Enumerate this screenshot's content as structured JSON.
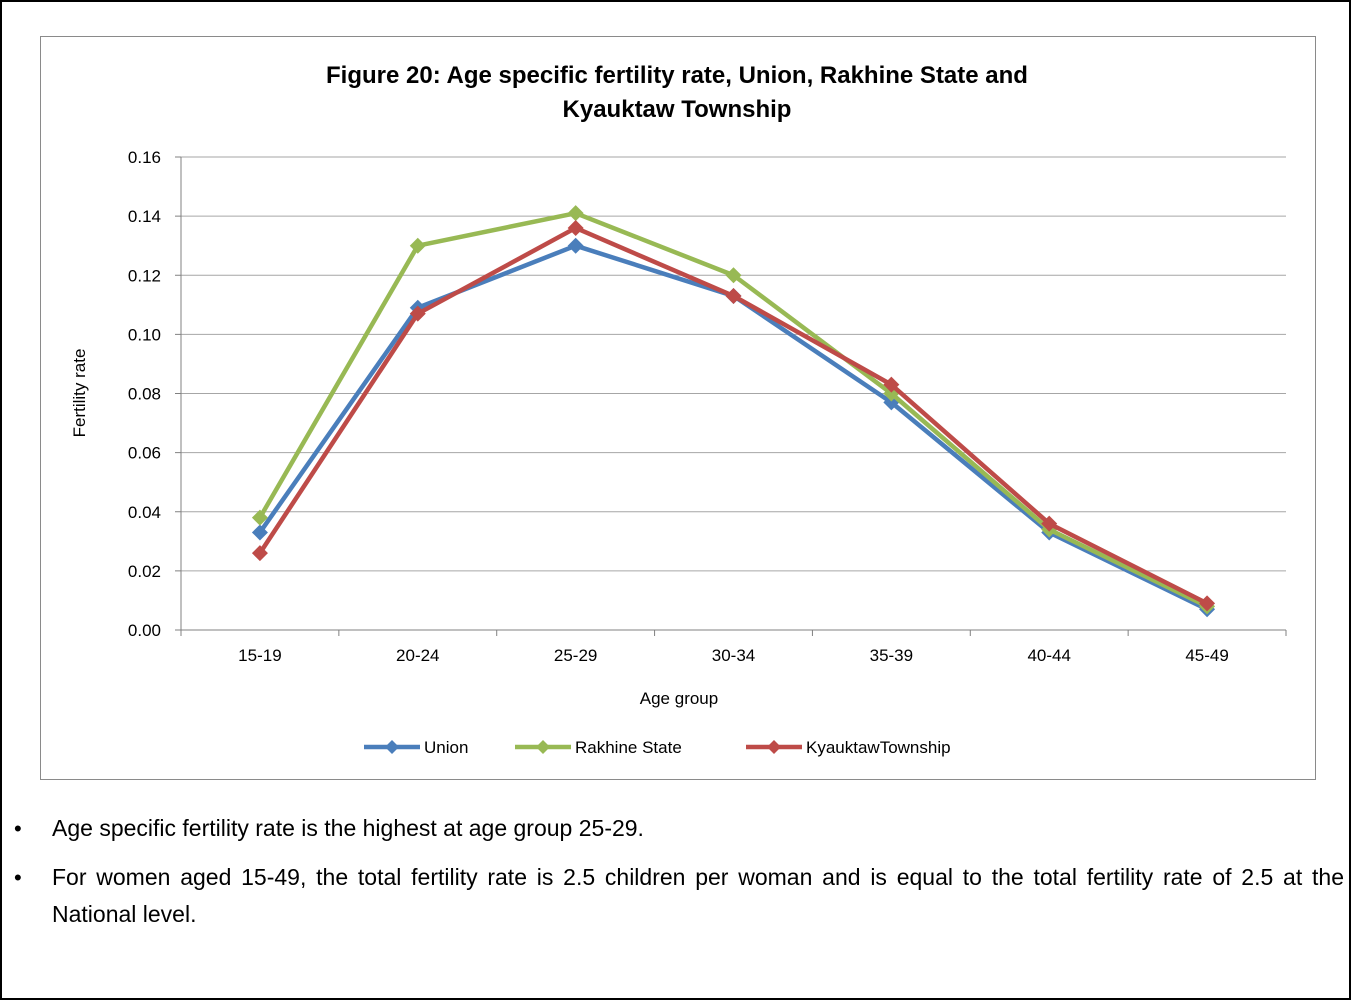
{
  "chart_data": {
    "type": "line",
    "title_line1": "Figure 20: Age specific fertility rate, Union, Rakhine State and",
    "title_line2": "Kyauktaw  Township",
    "xlabel": "Age group",
    "ylabel": "Fertility rate",
    "categories": [
      "15-19",
      "20-24",
      "25-29",
      "30-34",
      "35-39",
      "40-44",
      "45-49"
    ],
    "ylim": [
      0,
      0.16
    ],
    "yticks": [
      "0.00",
      "0.02",
      "0.04",
      "0.06",
      "0.08",
      "0.10",
      "0.12",
      "0.14",
      "0.16"
    ],
    "grid": "horizontal",
    "legend_position": "bottom",
    "series": [
      {
        "name": "Union",
        "color": "#4a7ebb",
        "values": [
          0.033,
          0.109,
          0.13,
          0.113,
          0.077,
          0.033,
          0.007
        ]
      },
      {
        "name": "Rakhine State",
        "color": "#98b954",
        "values": [
          0.038,
          0.13,
          0.141,
          0.12,
          0.08,
          0.034,
          0.008
        ]
      },
      {
        "name": "KyauktawTownship",
        "color": "#be4b48",
        "values": [
          0.026,
          0.107,
          0.136,
          0.113,
          0.083,
          0.036,
          0.009
        ]
      }
    ]
  },
  "bullets": [
    "Age specific fertility rate is the highest at age group 25-29.",
    "For women aged 15-49, the total fertility rate is 2.5 children per woman and is equal to the total fertility rate of 2.5 at the National level."
  ]
}
